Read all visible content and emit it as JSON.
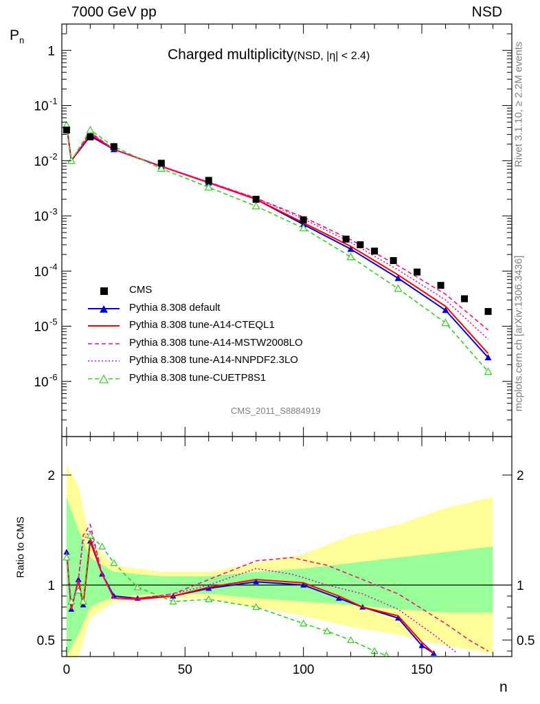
{
  "header": {
    "energy": "7000 GeV pp",
    "process": "NSD"
  },
  "title": {
    "main": "Charged multiplicity",
    "sub": "(NSD, |η| < 2.4)"
  },
  "side_labels": {
    "rivet": "Rivet 3.1.10, ≥ 2.2M events",
    "source": "mcplots.cern.ch [arXiv:1306.3436]"
  },
  "analysis_id": "CMS_2011_S8884919",
  "axis_labels": {
    "y_top": "P",
    "y_top_sub": "n",
    "y_ratio": "Ratio to CMS",
    "x": "n"
  },
  "legend": [
    {
      "label": "CMS",
      "color": "#000000",
      "marker": "square",
      "line": "none"
    },
    {
      "label": "Pythia 8.308 default",
      "color": "#0000cc",
      "marker": "triangle-filled",
      "line": "solid"
    },
    {
      "label": "Pythia 8.308 tune-A14-CTEQL1",
      "color": "#ff0000",
      "marker": "none",
      "line": "solid"
    },
    {
      "label": "Pythia 8.308 tune-A14-MSTW2008LO",
      "color": "#ee1177",
      "marker": "none",
      "line": "dashed"
    },
    {
      "label": "Pythia 8.308 tune-A14-NNPDF2.3LO",
      "color": "#dd00cc",
      "marker": "none",
      "line": "dotted"
    },
    {
      "label": "Pythia 8.308 tune-CUETP8S1",
      "color": "#33cc22",
      "marker": "triangle-open",
      "line": "dashed"
    }
  ],
  "chart_data": {
    "type": "scatter",
    "x_range": [
      -2,
      188
    ],
    "y_range_main": [
      1e-07,
      3
    ],
    "y_scale_main": "log",
    "y_range_ratio": [
      0.35,
      2.35
    ],
    "x_ticks": [
      "0",
      "50",
      "100",
      "150"
    ],
    "y_ticks_main": [
      "1",
      "10^-1",
      "10^-2",
      "10^-3",
      "10^-4",
      "10^-5",
      "10^-6"
    ],
    "y_ticks_ratio": [
      "0.5",
      "1",
      "2"
    ],
    "legend_position": "lower-left",
    "data": {
      "x": [
        0,
        10,
        20,
        40,
        60,
        80,
        100,
        118,
        124,
        130,
        138,
        148,
        158,
        168,
        178
      ],
      "y": [
        0.036,
        0.027,
        0.018,
        0.009,
        0.0044,
        0.002,
        0.00085,
        0.00038,
        0.0003,
        0.00023,
        0.000155,
        9.6e-05,
        5.5e-05,
        3.15e-05,
        1.85e-05
      ]
    },
    "series": [
      {
        "name": "Pythia 8.308 default",
        "points": [
          [
            0,
            0.045
          ],
          [
            2,
            0.01
          ],
          [
            10,
            0.028
          ],
          [
            20,
            0.016
          ],
          [
            40,
            0.0079
          ],
          [
            60,
            0.004
          ],
          [
            80,
            0.002
          ],
          [
            100,
            0.0007
          ],
          [
            120,
            0.00025
          ],
          [
            140,
            7.4e-05
          ],
          [
            160,
            1.95e-05
          ],
          [
            178,
            2.7e-06
          ]
        ]
      },
      {
        "name": "Pythia 8.308 tune-A14-CTEQL1",
        "points": [
          [
            0,
            0.045
          ],
          [
            2,
            0.01
          ],
          [
            10,
            0.03
          ],
          [
            20,
            0.016
          ],
          [
            40,
            0.0079
          ],
          [
            60,
            0.004
          ],
          [
            80,
            0.002
          ],
          [
            100,
            0.00075
          ],
          [
            120,
            0.00028
          ],
          [
            140,
            8.5e-05
          ],
          [
            160,
            2.3e-05
          ],
          [
            178,
            3.2e-06
          ]
        ]
      },
      {
        "name": "Pythia 8.308 tune-A14-MSTW2008LO",
        "points": [
          [
            0,
            0.045
          ],
          [
            2,
            0.01
          ],
          [
            10,
            0.033
          ],
          [
            20,
            0.016
          ],
          [
            40,
            0.008
          ],
          [
            60,
            0.0041
          ],
          [
            80,
            0.0021
          ],
          [
            100,
            0.00095
          ],
          [
            120,
            0.00037
          ],
          [
            140,
            0.000125
          ],
          [
            160,
            3.8e-05
          ],
          [
            178,
            8.5e-06
          ]
        ]
      },
      {
        "name": "Pythia 8.308 tune-A14-NNPDF2.3LO",
        "points": [
          [
            0,
            0.045
          ],
          [
            2,
            0.01
          ],
          [
            10,
            0.032
          ],
          [
            20,
            0.016
          ],
          [
            40,
            0.008
          ],
          [
            60,
            0.0041
          ],
          [
            80,
            0.0021
          ],
          [
            100,
            0.00088
          ],
          [
            120,
            0.00033
          ],
          [
            140,
            0.000105
          ],
          [
            160,
            3e-05
          ],
          [
            178,
            5.8e-06
          ]
        ]
      },
      {
        "name": "Pythia 8.308 tune-CUETP8S1",
        "points": [
          [
            0,
            0.044
          ],
          [
            2,
            0.01
          ],
          [
            10,
            0.036
          ],
          [
            20,
            0.018
          ],
          [
            40,
            0.0072
          ],
          [
            60,
            0.0033
          ],
          [
            80,
            0.0015
          ],
          [
            100,
            0.0006
          ],
          [
            120,
            0.00018
          ],
          [
            140,
            4.8e-05
          ],
          [
            160,
            1.15e-05
          ],
          [
            178,
            1.5e-06
          ]
        ]
      }
    ],
    "ratio": {
      "reference": 1,
      "uncertainty_band_inner": [
        [
          0,
          0.35,
          1.8
        ],
        [
          5,
          0.55,
          1.5
        ],
        [
          10,
          0.8,
          1.25
        ],
        [
          20,
          0.9,
          1.12
        ],
        [
          40,
          0.92,
          1.08
        ],
        [
          60,
          0.92,
          1.08
        ],
        [
          80,
          0.88,
          1.12
        ],
        [
          100,
          0.85,
          1.15
        ],
        [
          120,
          0.82,
          1.2
        ],
        [
          140,
          0.78,
          1.25
        ],
        [
          160,
          0.75,
          1.3
        ],
        [
          180,
          0.75,
          1.35
        ]
      ],
      "uncertainty_band_outer": [
        [
          0,
          0.35,
          2.1
        ],
        [
          5,
          0.35,
          1.9
        ],
        [
          10,
          0.7,
          1.4
        ],
        [
          20,
          0.85,
          1.18
        ],
        [
          40,
          0.88,
          1.12
        ],
        [
          60,
          0.88,
          1.12
        ],
        [
          80,
          0.8,
          1.2
        ],
        [
          100,
          0.72,
          1.28
        ],
        [
          120,
          0.62,
          1.45
        ],
        [
          140,
          0.55,
          1.55
        ],
        [
          160,
          0.45,
          1.7
        ],
        [
          180,
          0.38,
          1.8
        ]
      ],
      "series": [
        {
          "name": "Pythia 8.308 default",
          "points": [
            [
              0,
              1.3
            ],
            [
              2,
              0.78
            ],
            [
              5,
              1.05
            ],
            [
              7,
              0.82
            ],
            [
              10,
              1.4
            ],
            [
              15,
              1.1
            ],
            [
              20,
              0.9
            ],
            [
              30,
              0.88
            ],
            [
              45,
              0.9
            ],
            [
              60,
              0.97
            ],
            [
              80,
              1.03
            ],
            [
              100,
              1.0
            ],
            [
              115,
              0.88
            ],
            [
              125,
              0.8
            ],
            [
              140,
              0.7
            ],
            [
              150,
              0.45
            ],
            [
              155,
              0.38
            ]
          ]
        },
        {
          "name": "Pythia 8.308 tune-A14-CTEQL1",
          "points": [
            [
              0,
              1.3
            ],
            [
              2,
              0.78
            ],
            [
              5,
              1.05
            ],
            [
              7,
              0.82
            ],
            [
              10,
              1.42
            ],
            [
              15,
              1.1
            ],
            [
              20,
              0.88
            ],
            [
              30,
              0.87
            ],
            [
              45,
              0.9
            ],
            [
              60,
              0.98
            ],
            [
              80,
              1.05
            ],
            [
              100,
              1.02
            ],
            [
              115,
              0.9
            ],
            [
              125,
              0.8
            ],
            [
              140,
              0.72
            ],
            [
              150,
              0.48
            ],
            [
              155,
              0.38
            ]
          ]
        },
        {
          "name": "Pythia 8.308 tune-A14-MSTW2008LO",
          "points": [
            [
              0,
              1.3
            ],
            [
              2,
              0.78
            ],
            [
              5,
              1.05
            ],
            [
              7,
              1.45
            ],
            [
              10,
              1.55
            ],
            [
              15,
              1.1
            ],
            [
              20,
              0.88
            ],
            [
              30,
              0.88
            ],
            [
              45,
              0.92
            ],
            [
              60,
              1.05
            ],
            [
              80,
              1.22
            ],
            [
              95,
              1.25
            ],
            [
              110,
              1.18
            ],
            [
              125,
              1.05
            ],
            [
              140,
              0.92
            ],
            [
              160,
              0.65
            ],
            [
              170,
              0.5
            ],
            [
              178,
              0.4
            ]
          ]
        },
        {
          "name": "Pythia 8.308 tune-A14-NNPDF2.3LO",
          "points": [
            [
              0,
              1.3
            ],
            [
              2,
              0.78
            ],
            [
              5,
              1.05
            ],
            [
              7,
              1.4
            ],
            [
              10,
              1.5
            ],
            [
              15,
              1.1
            ],
            [
              20,
              0.88
            ],
            [
              30,
              0.88
            ],
            [
              45,
              0.92
            ],
            [
              60,
              1.0
            ],
            [
              80,
              1.15
            ],
            [
              95,
              1.1
            ],
            [
              110,
              1.0
            ],
            [
              125,
              0.92
            ],
            [
              140,
              0.78
            ],
            [
              155,
              0.55
            ],
            [
              165,
              0.38
            ]
          ]
        },
        {
          "name": "Pythia 8.308 tune-CUETP8S1",
          "points": [
            [
              0,
              1.25
            ],
            [
              2,
              0.85
            ],
            [
              5,
              0.95
            ],
            [
              7,
              0.85
            ],
            [
              10,
              1.45
            ],
            [
              15,
              1.35
            ],
            [
              20,
              1.2
            ],
            [
              30,
              0.98
            ],
            [
              45,
              0.85
            ],
            [
              60,
              0.87
            ],
            [
              80,
              0.8
            ],
            [
              100,
              0.65
            ],
            [
              110,
              0.58
            ],
            [
              120,
              0.5
            ],
            [
              130,
              0.4
            ],
            [
              135,
              0.36
            ]
          ]
        }
      ]
    }
  }
}
